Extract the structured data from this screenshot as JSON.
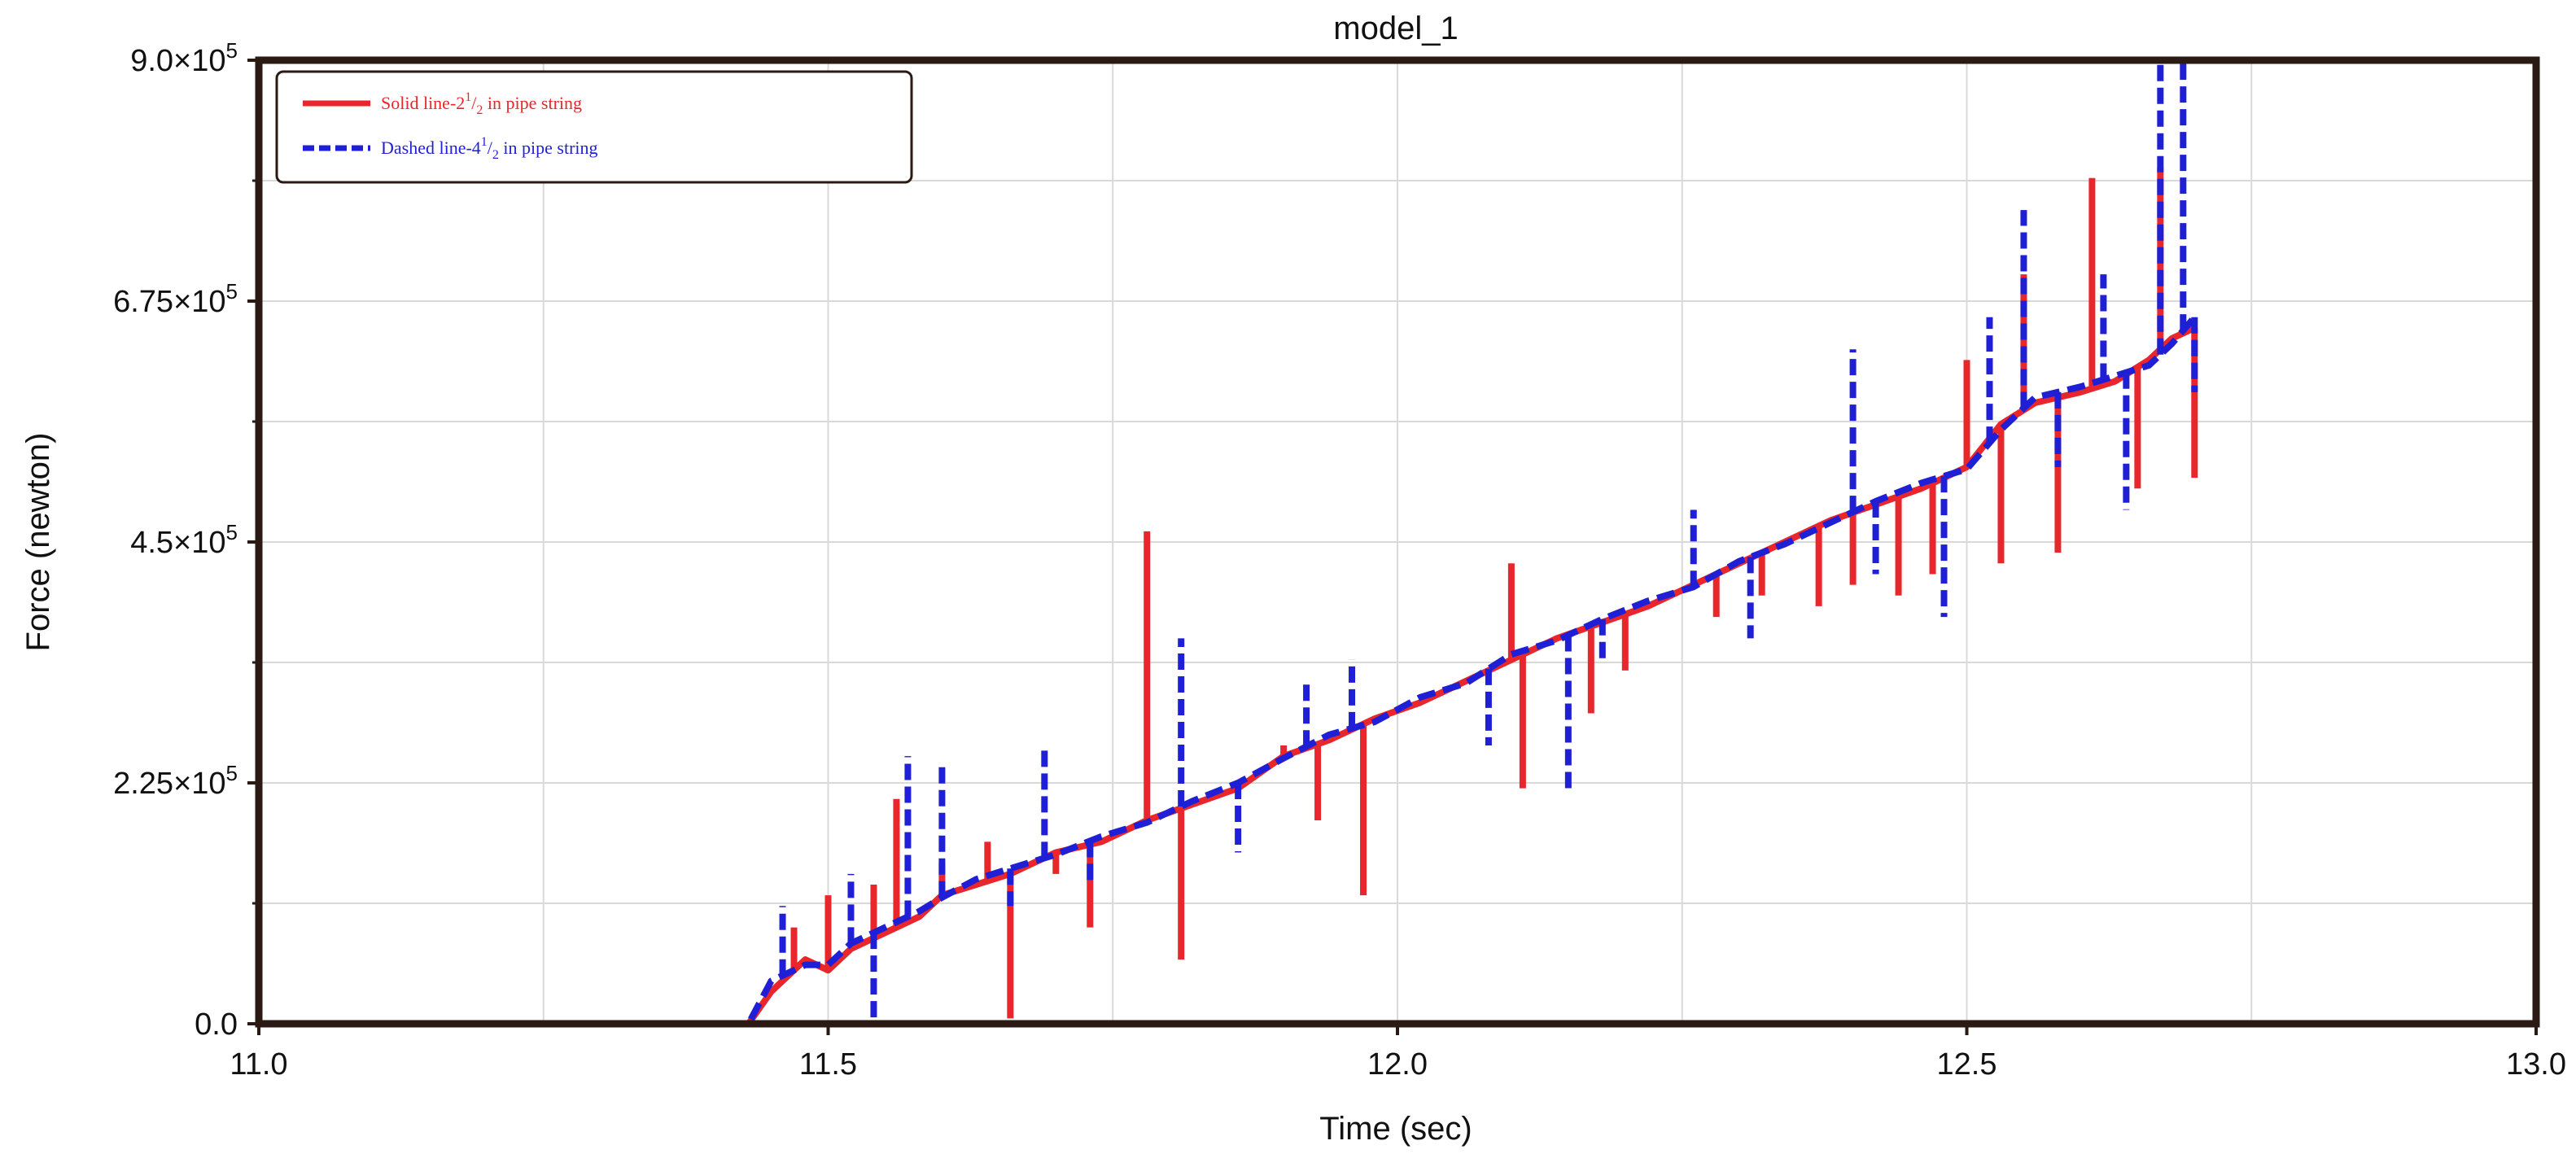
{
  "chart_data": {
    "type": "line",
    "title": "model_1",
    "xlabel": "Time (sec)",
    "ylabel": "Force (newton)",
    "xlim": [
      11.0,
      13.0
    ],
    "ylim": [
      0,
      900000
    ],
    "x_ticks": [
      11.0,
      11.5,
      12.0,
      12.5,
      13.0
    ],
    "x_tick_labels": [
      "11.0",
      "11.5",
      "12.0",
      "12.5",
      "13.0"
    ],
    "y_ticks": [
      0,
      225000,
      450000,
      675000,
      900000
    ],
    "y_tick_labels": [
      {
        "mant": "0.0",
        "exp": ""
      },
      {
        "mant": "2.25×10",
        "exp": "5"
      },
      {
        "mant": "4.5×10",
        "exp": "5"
      },
      {
        "mant": "6.75×10",
        "exp": "5"
      },
      {
        "mant": "9.0×10",
        "exp": "5"
      }
    ],
    "grid": true,
    "legend": {
      "position": "top-left",
      "entries": [
        {
          "text": "Solid line-2",
          "sup": "1",
          "frac": "/",
          "sub": "2",
          "tail": "  in pipe string"
        },
        {
          "text": "Dashed line-4",
          "sup": "1",
          "frac": "/",
          "sub": "2",
          "tail": "  in pipe string"
        }
      ]
    },
    "series": [
      {
        "style": "solid",
        "color": "#e8262b",
        "x": [
          11.0,
          11.43,
          11.45,
          11.48,
          11.5,
          11.52,
          11.56,
          11.58,
          11.6,
          11.63,
          11.66,
          11.7,
          11.74,
          11.78,
          11.82,
          11.86,
          11.9,
          11.94,
          11.98,
          12.02,
          12.06,
          12.1,
          12.14,
          12.18,
          12.22,
          12.26,
          12.3,
          12.34,
          12.38,
          12.42,
          12.46,
          12.5,
          12.53,
          12.56,
          12.6,
          12.63,
          12.66,
          12.68,
          12.7
        ],
        "y": [
          0,
          0,
          30000,
          60000,
          50000,
          70000,
          90000,
          100000,
          120000,
          130000,
          140000,
          160000,
          170000,
          190000,
          205000,
          220000,
          250000,
          265000,
          285000,
          300000,
          320000,
          340000,
          360000,
          375000,
          390000,
          410000,
          430000,
          450000,
          470000,
          485000,
          500000,
          520000,
          560000,
          580000,
          590000,
          600000,
          620000,
          640000,
          650000
        ],
        "spikes": [
          {
            "x": 11.47,
            "y": 90000
          },
          {
            "x": 11.5,
            "y": 120000
          },
          {
            "x": 11.54,
            "y": 130000
          },
          {
            "x": 11.56,
            "y": 210000
          },
          {
            "x": 11.6,
            "y": 150000
          },
          {
            "x": 11.64,
            "y": 170000
          },
          {
            "x": 11.66,
            "y": 5000
          },
          {
            "x": 11.7,
            "y": 140000
          },
          {
            "x": 11.73,
            "y": 90000
          },
          {
            "x": 11.78,
            "y": 460000
          },
          {
            "x": 11.81,
            "y": 60000
          },
          {
            "x": 11.9,
            "y": 260000
          },
          {
            "x": 11.93,
            "y": 190000
          },
          {
            "x": 11.97,
            "y": 120000
          },
          {
            "x": 12.1,
            "y": 430000
          },
          {
            "x": 12.11,
            "y": 220000
          },
          {
            "x": 12.17,
            "y": 290000
          },
          {
            "x": 12.2,
            "y": 330000
          },
          {
            "x": 12.28,
            "y": 380000
          },
          {
            "x": 12.32,
            "y": 400000
          },
          {
            "x": 12.37,
            "y": 390000
          },
          {
            "x": 12.4,
            "y": 410000
          },
          {
            "x": 12.44,
            "y": 400000
          },
          {
            "x": 12.47,
            "y": 420000
          },
          {
            "x": 12.5,
            "y": 620000
          },
          {
            "x": 12.53,
            "y": 430000
          },
          {
            "x": 12.55,
            "y": 700000
          },
          {
            "x": 12.58,
            "y": 440000
          },
          {
            "x": 12.61,
            "y": 790000
          },
          {
            "x": 12.65,
            "y": 500000
          },
          {
            "x": 12.67,
            "y": 800000
          },
          {
            "x": 12.7,
            "y": 510000
          }
        ]
      },
      {
        "style": "dashed",
        "color": "#1f1fd6",
        "x": [
          11.0,
          11.43,
          11.45,
          11.48,
          11.5,
          11.52,
          11.56,
          11.58,
          11.6,
          11.63,
          11.66,
          11.7,
          11.74,
          11.78,
          11.82,
          11.86,
          11.9,
          11.94,
          11.98,
          12.02,
          12.06,
          12.1,
          12.14,
          12.18,
          12.22,
          12.26,
          12.3,
          12.34,
          12.38,
          12.42,
          12.46,
          12.5,
          12.53,
          12.56,
          12.6,
          12.63,
          12.66,
          12.68,
          12.7
        ],
        "y": [
          0,
          0,
          40000,
          55000,
          55000,
          75000,
          95000,
          105000,
          118000,
          135000,
          145000,
          158000,
          175000,
          188000,
          208000,
          225000,
          248000,
          270000,
          282000,
          305000,
          318000,
          345000,
          358000,
          378000,
          395000,
          408000,
          432000,
          448000,
          468000,
          488000,
          505000,
          518000,
          555000,
          585000,
          595000,
          605000,
          615000,
          635000,
          660000
        ],
        "spikes": [
          {
            "x": 11.46,
            "y": 110000
          },
          {
            "x": 11.52,
            "y": 140000
          },
          {
            "x": 11.54,
            "y": 0
          },
          {
            "x": 11.57,
            "y": 250000
          },
          {
            "x": 11.6,
            "y": 240000
          },
          {
            "x": 11.66,
            "y": 110000
          },
          {
            "x": 11.69,
            "y": 260000
          },
          {
            "x": 11.73,
            "y": 130000
          },
          {
            "x": 11.81,
            "y": 360000
          },
          {
            "x": 11.86,
            "y": 160000
          },
          {
            "x": 11.92,
            "y": 320000
          },
          {
            "x": 11.96,
            "y": 340000
          },
          {
            "x": 12.08,
            "y": 260000
          },
          {
            "x": 12.15,
            "y": 220000
          },
          {
            "x": 12.18,
            "y": 340000
          },
          {
            "x": 12.26,
            "y": 480000
          },
          {
            "x": 12.31,
            "y": 360000
          },
          {
            "x": 12.4,
            "y": 630000
          },
          {
            "x": 12.42,
            "y": 420000
          },
          {
            "x": 12.48,
            "y": 380000
          },
          {
            "x": 12.52,
            "y": 660000
          },
          {
            "x": 12.55,
            "y": 760000
          },
          {
            "x": 12.58,
            "y": 520000
          },
          {
            "x": 12.62,
            "y": 700000
          },
          {
            "x": 12.64,
            "y": 480000
          },
          {
            "x": 12.67,
            "y": 900000
          },
          {
            "x": 12.69,
            "y": 900000
          },
          {
            "x": 12.7,
            "y": 590000
          }
        ]
      }
    ]
  }
}
